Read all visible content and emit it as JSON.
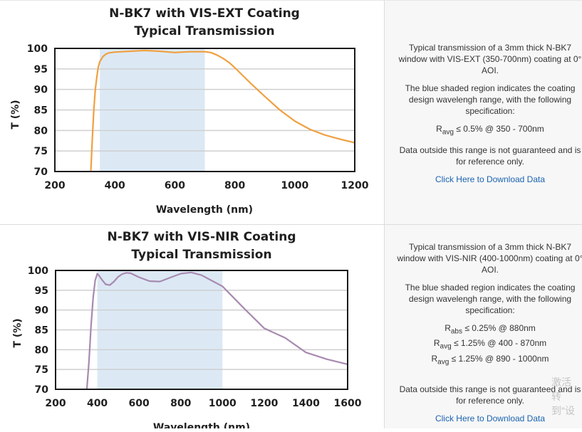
{
  "charts": [
    {
      "title_line1": "N-BK7 with VIS-EXT Coating",
      "title_line2": "Typical Transmission",
      "desc_line1": "Typical transmission of a 3mm thick N-BK7",
      "desc_line2": "window with VIS-EXT (350-700nm) coating at 0°",
      "desc_line3": "AOI.",
      "shade_line1": "The blue shaded region indicates the coating",
      "shade_line2": "design wavelengh range, with the following",
      "shade_line3": "specification:",
      "spec_lines": [
        {
          "main": "R",
          "sub": "avg",
          "rest": " ≤ 0.5% @ 350 - 700nm"
        }
      ],
      "outside_line1": "Data outside this range is not guaranteed and is",
      "outside_line2": "for reference only.",
      "download_label": "Click Here to Download Data"
    },
    {
      "title_line1": "N-BK7 with VIS-NIR Coating",
      "title_line2": "Typical Transmission",
      "desc_line1": "Typical transmission of a 3mm thick N-BK7",
      "desc_line2": "window with VIS-NIR (400-1000nm) coating at 0°",
      "desc_line3": "AOI.",
      "shade_line1": "The blue shaded region indicates the coating",
      "shade_line2": "design wavelengh range, with the following",
      "shade_line3": "specification:",
      "spec_lines": [
        {
          "main": "R",
          "sub": "abs",
          "rest": " ≤ 0.25% @ 880nm"
        },
        {
          "main": "R",
          "sub": "avg",
          "rest": " ≤ 1.25% @ 400 - 870nm"
        },
        {
          "main": "R",
          "sub": "avg",
          "rest": " ≤ 1.25% @ 890 - 1000nm"
        }
      ],
      "outside_line1": "Data outside this range is not guaranteed and is",
      "outside_line2": "for reference only.",
      "download_label": "Click Here to Download Data"
    }
  ],
  "watermark": {
    "line1": "激活",
    "line2": "转到\"设"
  },
  "chart_data": [
    {
      "type": "line",
      "title": "N-BK7 with VIS-EXT Coating Typical Transmission",
      "xlabel": "Wavelength (nm)",
      "ylabel": "T (%)",
      "xlim": [
        200,
        1200
      ],
      "ylim": [
        70,
        100
      ],
      "x_ticks": [
        200,
        400,
        600,
        800,
        1000,
        1200
      ],
      "y_ticks": [
        70,
        75,
        80,
        85,
        90,
        95,
        100
      ],
      "shaded_range": [
        350,
        700
      ],
      "colors": {
        "line": "#f0a040",
        "shade": "#dce9f5",
        "grid": "#cfcfcf",
        "frame": "#1a1a1a"
      },
      "grid": true,
      "series": [
        {
          "x": [
            320,
            325,
            330,
            335,
            340,
            345,
            350,
            360,
            370,
            380,
            400,
            450,
            500,
            550,
            600,
            650,
            700,
            720,
            740,
            760,
            780,
            800,
            850,
            900,
            950,
            1000,
            1050,
            1100,
            1150,
            1200
          ],
          "y": [
            70,
            78,
            85,
            90,
            93,
            95.5,
            96.8,
            98,
            98.6,
            98.9,
            99.1,
            99.3,
            99.5,
            99.3,
            99.0,
            99.2,
            99.2,
            99.0,
            98.4,
            97.6,
            96.6,
            95.3,
            91.7,
            88.3,
            85.0,
            82.3,
            80.3,
            78.9,
            77.9,
            77.0
          ]
        }
      ]
    },
    {
      "type": "line",
      "title": "N-BK7 with VIS-NIR Coating Typical Transmission",
      "xlabel": "Wavelength (nm)",
      "ylabel": "T (%)",
      "xlim": [
        200,
        1600
      ],
      "ylim": [
        70,
        100
      ],
      "x_ticks": [
        200,
        400,
        600,
        800,
        1000,
        1200,
        1400,
        1600
      ],
      "y_ticks": [
        70,
        75,
        80,
        85,
        90,
        95,
        100
      ],
      "shaded_range": [
        400,
        1000
      ],
      "colors": {
        "line": "#a88ab0",
        "shade": "#dce9f5",
        "grid": "#cfcfcf",
        "frame": "#1a1a1a"
      },
      "grid": true,
      "series": [
        {
          "x": [
            350,
            360,
            370,
            380,
            390,
            400,
            410,
            420,
            440,
            460,
            480,
            500,
            520,
            540,
            560,
            580,
            600,
            650,
            700,
            750,
            800,
            850,
            900,
            950,
            1000,
            1100,
            1200,
            1300,
            1400,
            1500,
            1600
          ],
          "y": [
            70,
            77,
            86,
            93,
            97.5,
            99.2,
            98.6,
            97.8,
            96.5,
            96.3,
            97.2,
            98.4,
            99.1,
            99.4,
            99.3,
            98.8,
            98.3,
            97.3,
            97.2,
            98.2,
            99.2,
            99.5,
            98.8,
            97.4,
            96.0,
            90.6,
            85.4,
            83.0,
            79.3,
            77.6,
            76.3
          ]
        }
      ]
    }
  ]
}
